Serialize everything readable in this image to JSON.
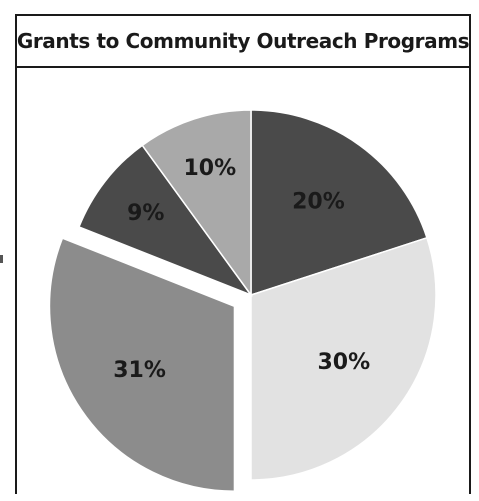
{
  "chart_data": {
    "type": "pie",
    "title": "Grants to Community Outreach Programs",
    "slices": [
      {
        "label": "20%",
        "value": 20,
        "color": "#4a4a4a",
        "exploded": false
      },
      {
        "label": "30%",
        "value": 30,
        "color": "#e2e2e2",
        "exploded": false
      },
      {
        "label": "31%",
        "value": 31,
        "color": "#8c8c8c",
        "exploded": true
      },
      {
        "label": "9%",
        "value": 9,
        "color": "#4a4a4a",
        "exploded": false
      },
      {
        "label": "10%",
        "value": 10,
        "color": "#a9a9a9",
        "exploded": false
      }
    ],
    "start_angle": "12 o'clock",
    "direction": "clockwise",
    "legend": "none"
  }
}
